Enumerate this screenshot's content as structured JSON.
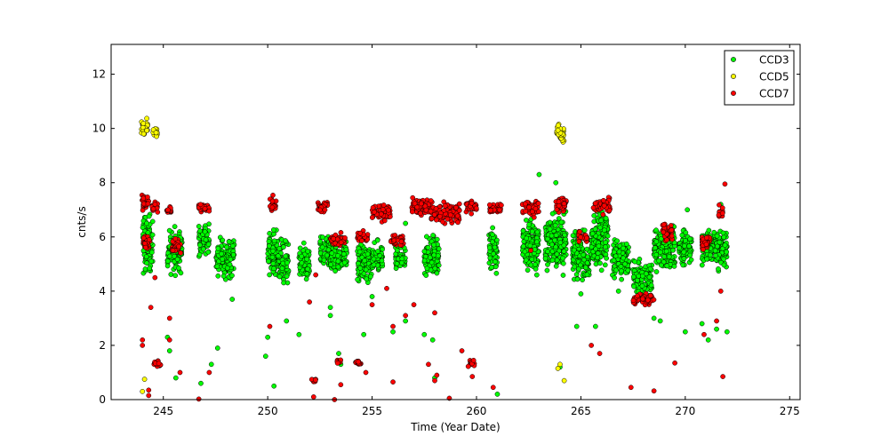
{
  "chart_data": {
    "type": "scatter",
    "title": "",
    "xlabel": "Time (Year Date)",
    "ylabel": "cnts/s",
    "xlim": [
      242.5,
      275.5
    ],
    "ylim": [
      0,
      13.1
    ],
    "x_ticks": [
      245,
      250,
      255,
      260,
      265,
      270,
      275
    ],
    "y_ticks": [
      0,
      2,
      4,
      6,
      8,
      10,
      12
    ],
    "grid": false,
    "legend_position": "top-right",
    "series": [
      {
        "name": "CCD3",
        "color": "#00ff00",
        "clusters": [
          {
            "x": [
              244.0,
              244.5
            ],
            "y": [
              4.3,
              7.2
            ]
          },
          {
            "x": [
              245.2,
              245.9
            ],
            "y": [
              4.4,
              6.6
            ]
          },
          {
            "x": [
              246.7,
              247.2
            ],
            "y": [
              5.0,
              6.8
            ]
          },
          {
            "x": [
              247.5,
              248.4
            ],
            "y": [
              4.3,
              6.2
            ]
          },
          {
            "x": [
              250.0,
              250.5
            ],
            "y": [
              4.3,
              6.5
            ]
          },
          {
            "x": [
              250.5,
              251.0
            ],
            "y": [
              4.0,
              6.2
            ]
          },
          {
            "x": [
              251.5,
              252.0
            ],
            "y": [
              4.1,
              5.9
            ]
          },
          {
            "x": [
              252.5,
              253.0
            ],
            "y": [
              4.6,
              6.2
            ]
          },
          {
            "x": [
              253.0,
              253.8
            ],
            "y": [
              4.4,
              6.1
            ]
          },
          {
            "x": [
              254.3,
              255.0
            ],
            "y": [
              4.0,
              6.0
            ]
          },
          {
            "x": [
              255.0,
              255.5
            ],
            "y": [
              4.4,
              6.0
            ]
          },
          {
            "x": [
              256.1,
              256.6
            ],
            "y": [
              4.6,
              6.0
            ]
          },
          {
            "x": [
              257.5,
              258.2
            ],
            "y": [
              4.3,
              6.3
            ]
          },
          {
            "x": [
              260.6,
              261.0
            ],
            "y": [
              4.3,
              6.8
            ]
          },
          {
            "x": [
              262.2,
              263.0
            ],
            "y": [
              4.3,
              7.0
            ]
          },
          {
            "x": [
              263.3,
              264.3
            ],
            "y": [
              4.4,
              7.2
            ]
          },
          {
            "x": [
              264.6,
              265.4
            ],
            "y": [
              4.1,
              6.5
            ]
          },
          {
            "x": [
              265.5,
              266.3
            ],
            "y": [
              4.6,
              7.3
            ]
          },
          {
            "x": [
              266.5,
              267.3
            ],
            "y": [
              4.2,
              6.2
            ]
          },
          {
            "x": [
              267.5,
              268.4
            ],
            "y": [
              3.5,
              5.3
            ]
          },
          {
            "x": [
              268.5,
              269.5
            ],
            "y": [
              4.5,
              6.6
            ]
          },
          {
            "x": [
              269.7,
              270.3
            ],
            "y": [
              4.7,
              6.5
            ]
          },
          {
            "x": [
              270.8,
              272.0
            ],
            "y": [
              4.6,
              6.6
            ]
          }
        ],
        "points": [
          [
            244.2,
            6.5
          ],
          [
            244.7,
            1.3
          ],
          [
            245.2,
            2.3
          ],
          [
            245.3,
            1.8
          ],
          [
            245.6,
            0.8
          ],
          [
            246.8,
            0.6
          ],
          [
            247.3,
            1.3
          ],
          [
            247.6,
            1.9
          ],
          [
            248.3,
            3.7
          ],
          [
            249.9,
            1.6
          ],
          [
            250.0,
            2.3
          ],
          [
            250.3,
            0.5
          ],
          [
            250.9,
            2.9
          ],
          [
            251.5,
            2.4
          ],
          [
            253.0,
            3.1
          ],
          [
            253.0,
            3.4
          ],
          [
            253.4,
            1.7
          ],
          [
            253.5,
            1.3
          ],
          [
            254.6,
            2.4
          ],
          [
            255.0,
            3.8
          ],
          [
            256.0,
            2.5
          ],
          [
            256.6,
            2.9
          ],
          [
            256.6,
            6.5
          ],
          [
            257.5,
            2.4
          ],
          [
            257.9,
            2.2
          ],
          [
            258.0,
            0.8
          ],
          [
            261.0,
            0.2
          ],
          [
            263.0,
            8.3
          ],
          [
            263.8,
            8.0
          ],
          [
            264.0,
            1.2
          ],
          [
            264.8,
            2.7
          ],
          [
            265.0,
            3.9
          ],
          [
            265.7,
            2.7
          ],
          [
            266.8,
            4.0
          ],
          [
            268.5,
            3.0
          ],
          [
            268.8,
            2.9
          ],
          [
            270.0,
            2.5
          ],
          [
            270.1,
            7.0
          ],
          [
            270.8,
            2.8
          ],
          [
            271.1,
            2.2
          ],
          [
            271.5,
            2.6
          ],
          [
            271.7,
            7.2
          ],
          [
            272.0,
            2.5
          ]
        ]
      },
      {
        "name": "CCD5",
        "color": "#ffff00",
        "clusters": [
          {
            "x": [
              243.95,
              244.25
            ],
            "y": [
              9.6,
              10.45
            ]
          },
          {
            "x": [
              244.5,
              244.72
            ],
            "y": [
              9.6,
              10.15
            ]
          },
          {
            "x": [
              263.85,
              264.2
            ],
            "y": [
              9.3,
              10.35
            ]
          }
        ],
        "points": [
          [
            244.1,
            0.75
          ],
          [
            244.0,
            0.3
          ],
          [
            263.9,
            1.15
          ],
          [
            264.0,
            1.3
          ],
          [
            264.2,
            0.7
          ]
        ]
      },
      {
        "name": "CCD7",
        "color": "#ff0000",
        "clusters": [
          {
            "x": [
              243.95,
              244.35
            ],
            "y": [
              6.8,
              7.7
            ]
          },
          {
            "x": [
              244.05,
              244.35
            ],
            "y": [
              5.4,
              6.2
            ]
          },
          {
            "x": [
              244.45,
              244.75
            ],
            "y": [
              6.8,
              7.4
            ]
          },
          {
            "x": [
              244.55,
              244.9
            ],
            "y": [
              1.2,
              1.5
            ]
          },
          {
            "x": [
              245.15,
              245.45
            ],
            "y": [
              6.8,
              7.2
            ]
          },
          {
            "x": [
              245.4,
              245.9
            ],
            "y": [
              5.3,
              6.0
            ]
          },
          {
            "x": [
              246.7,
              247.2
            ],
            "y": [
              6.8,
              7.3
            ]
          },
          {
            "x": [
              250.1,
              250.4
            ],
            "y": [
              6.8,
              7.6
            ]
          },
          {
            "x": [
              252.1,
              252.3
            ],
            "y": [
              0.6,
              0.8
            ]
          },
          {
            "x": [
              252.4,
              252.9
            ],
            "y": [
              6.8,
              7.4
            ]
          },
          {
            "x": [
              253.0,
              253.7
            ],
            "y": [
              5.6,
              6.2
            ]
          },
          {
            "x": [
              253.3,
              253.5
            ],
            "y": [
              1.3,
              1.5
            ]
          },
          {
            "x": [
              254.2,
              254.5
            ],
            "y": [
              1.2,
              1.5
            ]
          },
          {
            "x": [
              254.3,
              254.8
            ],
            "y": [
              5.7,
              6.3
            ]
          },
          {
            "x": [
              255.0,
              255.9
            ],
            "y": [
              6.5,
              7.3
            ]
          },
          {
            "x": [
              255.9,
              256.5
            ],
            "y": [
              5.6,
              6.2
            ]
          },
          {
            "x": [
              256.9,
              257.8
            ],
            "y": [
              6.7,
              7.5
            ]
          },
          {
            "x": [
              257.8,
              259.2
            ],
            "y": [
              6.4,
              7.4
            ]
          },
          {
            "x": [
              259.6,
              259.9
            ],
            "y": [
              1.2,
              1.5
            ]
          },
          {
            "x": [
              259.5,
              260.0
            ],
            "y": [
              6.8,
              7.4
            ]
          },
          {
            "x": [
              260.6,
              261.2
            ],
            "y": [
              6.8,
              7.3
            ]
          },
          {
            "x": [
              262.2,
              263.0
            ],
            "y": [
              6.7,
              7.4
            ]
          },
          {
            "x": [
              263.8,
              264.3
            ],
            "y": [
              6.8,
              7.6
            ]
          },
          {
            "x": [
              264.9,
              265.3
            ],
            "y": [
              5.7,
              6.3
            ]
          },
          {
            "x": [
              265.6,
              266.4
            ],
            "y": [
              6.8,
              7.5
            ]
          },
          {
            "x": [
              267.5,
              268.5
            ],
            "y": [
              3.4,
              4.0
            ]
          },
          {
            "x": [
              268.9,
              269.4
            ],
            "y": [
              5.7,
              6.6
            ]
          },
          {
            "x": [
              270.8,
              271.2
            ],
            "y": [
              5.4,
              6.2
            ]
          },
          {
            "x": [
              271.6,
              271.8
            ],
            "y": [
              6.6,
              7.3
            ]
          }
        ],
        "points": [
          [
            244.0,
            2.2
          ],
          [
            244.0,
            2.0
          ],
          [
            244.3,
            0.35
          ],
          [
            244.3,
            0.15
          ],
          [
            244.4,
            3.4
          ],
          [
            244.6,
            4.5
          ],
          [
            245.3,
            3.0
          ],
          [
            245.3,
            2.2
          ],
          [
            245.8,
            1.0
          ],
          [
            246.7,
            0.02
          ],
          [
            247.2,
            1.0
          ],
          [
            250.1,
            2.7
          ],
          [
            252.0,
            3.6
          ],
          [
            252.2,
            0.1
          ],
          [
            252.3,
            4.6
          ],
          [
            253.5,
            0.55
          ],
          [
            253.2,
            0.0
          ],
          [
            254.7,
            1.0
          ],
          [
            255.0,
            3.5
          ],
          [
            255.7,
            4.1
          ],
          [
            256.0,
            0.65
          ],
          [
            256.0,
            2.7
          ],
          [
            256.6,
            3.1
          ],
          [
            257.0,
            3.5
          ],
          [
            257.7,
            1.3
          ],
          [
            258.0,
            3.2
          ],
          [
            258.1,
            0.9
          ],
          [
            258.0,
            0.7
          ],
          [
            258.7,
            0.05
          ],
          [
            259.3,
            1.8
          ],
          [
            259.8,
            0.85
          ],
          [
            260.8,
            0.45
          ],
          [
            262.6,
            5.5
          ],
          [
            265.5,
            2.0
          ],
          [
            265.9,
            1.7
          ],
          [
            267.4,
            0.45
          ],
          [
            268.5,
            0.32
          ],
          [
            269.5,
            1.35
          ],
          [
            270.9,
            2.4
          ],
          [
            271.5,
            2.9
          ],
          [
            271.8,
            0.85
          ],
          [
            271.9,
            7.95
          ],
          [
            271.7,
            4.0
          ]
        ]
      }
    ]
  }
}
